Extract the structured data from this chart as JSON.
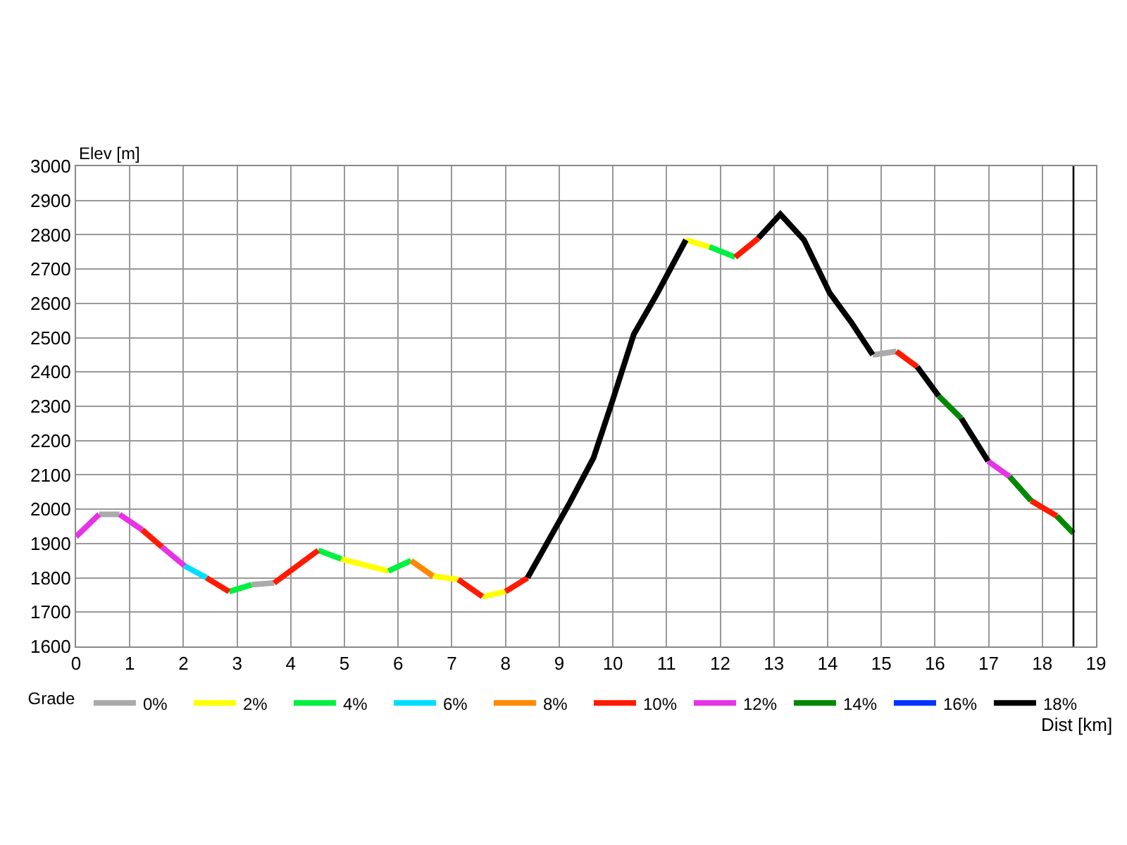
{
  "chart_data": {
    "type": "line",
    "xlabel": "Dist [km]",
    "ylabel": "Elev [m]",
    "legend_title": "Grade",
    "xlim": [
      0,
      19
    ],
    "xticks": [
      0,
      1,
      2,
      3,
      4,
      5,
      6,
      7,
      8,
      9,
      10,
      11,
      12,
      13,
      14,
      15,
      16,
      17,
      18,
      19
    ],
    "ylim": [
      1600,
      3000
    ],
    "yticks": [
      1600,
      1700,
      1800,
      1900,
      2000,
      2100,
      2200,
      2300,
      2400,
      2500,
      2600,
      2700,
      2800,
      2900,
      3000
    ],
    "grid": true,
    "legend": "bottom",
    "line_style": "solid",
    "ref_lines": [
      {
        "axis": "x",
        "value": 18.58,
        "color": "#000000"
      }
    ],
    "series": [
      {
        "name": "0%",
        "color": "#aaaaaa",
        "x": [
          0.43,
          0.81,
          null,
          3.27,
          3.69,
          null,
          14.84,
          15.28
        ],
        "values": [
          1985,
          1985,
          null,
          1780,
          1785,
          null,
          2450,
          2460
        ]
      },
      {
        "name": "2%",
        "color": "#ffff00",
        "x": [
          4.94,
          5.82,
          null,
          6.65,
          7.12,
          null,
          7.57,
          8.0,
          null,
          11.36,
          11.8
        ],
        "values": [
          1855,
          1820,
          null,
          1805,
          1795,
          null,
          1745,
          1760,
          null,
          2785,
          2765
        ]
      },
      {
        "name": "4%",
        "color": "#00f040",
        "x": [
          2.85,
          3.27,
          null,
          4.51,
          4.94,
          null,
          5.82,
          6.24,
          null,
          11.8,
          12.28
        ],
        "values": [
          1760,
          1780,
          null,
          1880,
          1855,
          null,
          1820,
          1850,
          null,
          2765,
          2735
        ]
      },
      {
        "name": "6%",
        "color": "#00ddff",
        "x": [
          2.02,
          2.43
        ],
        "values": [
          1835,
          1800
        ]
      },
      {
        "name": "8%",
        "color": "#ff8800",
        "x": [
          6.24,
          6.65
        ],
        "values": [
          1850,
          1805
        ]
      },
      {
        "name": "10%",
        "color": "#ff1a00",
        "x": [
          1.23,
          1.6,
          null,
          2.43,
          2.85,
          null,
          3.69,
          4.51,
          null,
          7.12,
          7.57,
          null,
          8.0,
          8.41,
          null,
          12.28,
          12.71,
          null,
          15.28,
          15.67,
          null,
          17.79,
          18.27
        ],
        "values": [
          1940,
          1890,
          null,
          1800,
          1760,
          null,
          1785,
          1880,
          null,
          1795,
          1745,
          null,
          1760,
          1800,
          null,
          2735,
          2790,
          null,
          2460,
          2415,
          null,
          2025,
          1980
        ]
      },
      {
        "name": "12%",
        "color": "#e633e6",
        "x": [
          0,
          0.43,
          null,
          0.81,
          1.23,
          null,
          1.6,
          2.02,
          null,
          16.99,
          17.39
        ],
        "values": [
          1920,
          1985,
          null,
          1985,
          1940,
          null,
          1890,
          1835,
          null,
          2140,
          2095
        ]
      },
      {
        "name": "14%",
        "color": "#008800",
        "x": [
          16.07,
          16.49,
          null,
          17.39,
          17.79,
          null,
          18.27,
          18.58
        ],
        "values": [
          2330,
          2265,
          null,
          2095,
          2025,
          null,
          1980,
          1930
        ]
      },
      {
        "name": "16%",
        "color": "#0033ff",
        "x": [
          null
        ],
        "values": [
          null
        ]
      },
      {
        "name": "18%",
        "color": "#000000",
        "x": [
          8.41,
          9.2,
          9.64,
          9.99,
          10.39,
          10.83,
          11.36,
          null,
          12.71,
          13.12,
          13.56,
          14.04,
          14.44,
          14.84,
          null,
          15.67,
          16.07,
          null,
          16.49,
          16.99
        ],
        "values": [
          1800,
          2020,
          2150,
          2315,
          2510,
          2630,
          2785,
          null,
          2790,
          2860,
          2785,
          2630,
          2545,
          2450,
          null,
          2415,
          2330,
          null,
          2265,
          2140
        ]
      }
    ]
  }
}
